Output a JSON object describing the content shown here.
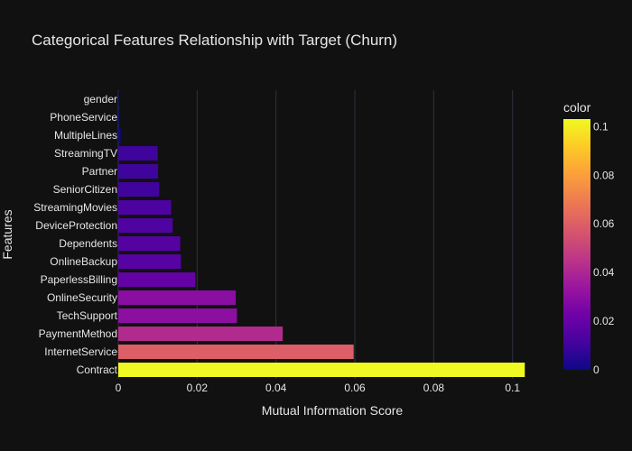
{
  "chart_data": {
    "type": "bar",
    "orientation": "horizontal",
    "title": "Categorical Features Relationship with Target (Churn)",
    "xlabel": "Mutual Information Score",
    "ylabel": "Features",
    "xlim": [
      0,
      0.1035
    ],
    "xticks": [
      0,
      0.02,
      0.04,
      0.06,
      0.08,
      0.1
    ],
    "xtick_labels": [
      "0",
      "0.02",
      "0.04",
      "0.06",
      "0.08",
      "0.1"
    ],
    "grid": true,
    "categories": [
      "gender",
      "PhoneService",
      "MultipleLines",
      "StreamingTV",
      "Partner",
      "SeniorCitizen",
      "StreamingMovies",
      "DeviceProtection",
      "Dependents",
      "OnlineBackup",
      "PaperlessBilling",
      "OnlineSecurity",
      "TechSupport",
      "PaymentMethod",
      "InternetService",
      "Contract"
    ],
    "values": [
      0.0001,
      0.0002,
      0.0006,
      0.01,
      0.0101,
      0.0104,
      0.0134,
      0.0138,
      0.0157,
      0.0159,
      0.0195,
      0.0298,
      0.0301,
      0.0417,
      0.0597,
      0.1031
    ],
    "colorbar": {
      "title": "color",
      "range": [
        0,
        0.1031
      ],
      "ticks": [
        0,
        0.02,
        0.04,
        0.06,
        0.08,
        0.1
      ],
      "tick_labels": [
        "0",
        "0.02",
        "0.04",
        "0.06",
        "0.08",
        "0.1"
      ],
      "colorscale": [
        "#0d0887",
        "#46039f",
        "#7201a8",
        "#9c179e",
        "#bd3786",
        "#d8576b",
        "#ed7953",
        "#fb9f3a",
        "#fdca26",
        "#f0f921"
      ]
    }
  }
}
